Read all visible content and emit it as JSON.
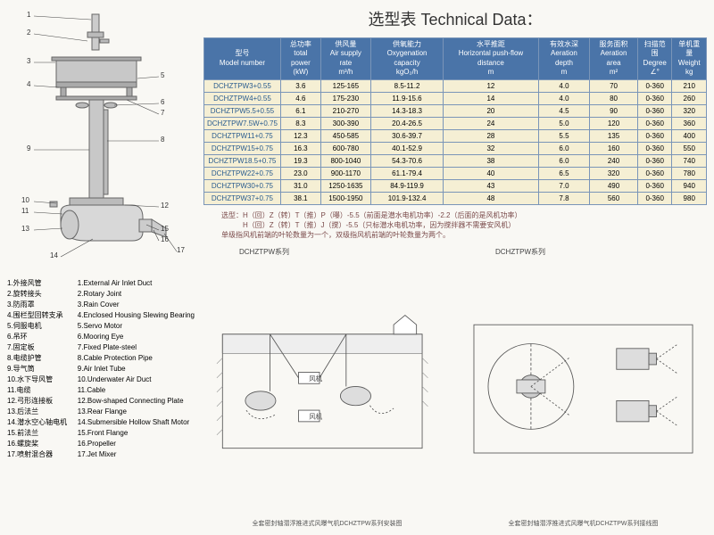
{
  "title_cn": "选型表",
  "title_en": "Technical Data：",
  "headers": [
    {
      "cn": "型号",
      "en": "Model number"
    },
    {
      "cn": "总功率",
      "en": "total power",
      "unit": "(kW)"
    },
    {
      "cn": "供风量",
      "en": "Air supply rate",
      "unit": "m³/h"
    },
    {
      "cn": "供氧能力",
      "en": "Oxygenation capacity",
      "unit": "kgO₂/h"
    },
    {
      "cn": "水平推距",
      "en": "Horizontal push-flow distance",
      "unit": "m"
    },
    {
      "cn": "有效水深",
      "en": "Aeration depth",
      "unit": "m"
    },
    {
      "cn": "服务面积",
      "en": "Aeration area",
      "unit": "m²"
    },
    {
      "cn": "扫描范围",
      "en": "Degree",
      "unit": "∠°"
    },
    {
      "cn": "单机重量",
      "en": "Weight",
      "unit": "kg"
    }
  ],
  "rows": [
    [
      "DCHZTPW3+0.55",
      "3.6",
      "125-165",
      "8.5-11.2",
      "12",
      "4.0",
      "70",
      "0-360",
      "210"
    ],
    [
      "DCHZTPW4+0.55",
      "4.6",
      "175-230",
      "11.9-15.6",
      "14",
      "4.0",
      "80",
      "0-360",
      "260"
    ],
    [
      "DCHZTPW5.5+0.55",
      "6.1",
      "210-270",
      "14.3-18.3",
      "20",
      "4.5",
      "90",
      "0-360",
      "320"
    ],
    [
      "DCHZTPW7.5W+0.75",
      "8.3",
      "300-390",
      "20.4-26.5",
      "24",
      "5.0",
      "120",
      "0-360",
      "360"
    ],
    [
      "DCHZTPW11+0.75",
      "12.3",
      "450-585",
      "30.6-39.7",
      "28",
      "5.5",
      "135",
      "0-360",
      "400"
    ],
    [
      "DCHZTPW15+0.75",
      "16.3",
      "600-780",
      "40.1-52.9",
      "32",
      "6.0",
      "160",
      "0-360",
      "550"
    ],
    [
      "DCHZTPW18.5+0.75",
      "19.3",
      "800-1040",
      "54.3-70.6",
      "38",
      "6.0",
      "240",
      "0-360",
      "740"
    ],
    [
      "DCHZTPW22+0.75",
      "23.0",
      "900-1170",
      "61.1-79.4",
      "40",
      "6.5",
      "320",
      "0-360",
      "780"
    ],
    [
      "DCHZTPW30+0.75",
      "31.0",
      "1250-1635",
      "84.9-119.9",
      "43",
      "7.0",
      "490",
      "0-360",
      "940"
    ],
    [
      "DCHZTPW37+0.75",
      "38.1",
      "1500-1950",
      "101.9-132.4",
      "48",
      "7.8",
      "560",
      "0-360",
      "980"
    ]
  ],
  "notes": [
    "选型：H（回）Z（转）T（推）P（曝）-5.5（前面是潜水电机功率）-2.2（后面的是风机功率）",
    "　　　H（回）Z（转）T（推）J（搅）-5.5（只标潜水电机功率，因为搅拌器不需要安风机）",
    "单级指风机前端的叶轮数量为一个，双级指风机前端的叶轮数量为两个。"
  ],
  "parts": [
    {
      "n": "1",
      "cn": "外接风管",
      "en": "External Air Inlet Duct"
    },
    {
      "n": "2",
      "cn": "旋转接头",
      "en": "Rotary Joint"
    },
    {
      "n": "3",
      "cn": "防雨罩",
      "en": "Rain Cover"
    },
    {
      "n": "4",
      "cn": "围栏型回转支承",
      "en": "Enclosed Housing Slewing Bearing"
    },
    {
      "n": "5",
      "cn": "伺服电机",
      "en": "Servo Motor"
    },
    {
      "n": "6",
      "cn": "吊环",
      "en": "Mooring Eye"
    },
    {
      "n": "7",
      "cn": "固定板",
      "en": "Fixed Plate-steel"
    },
    {
      "n": "8",
      "cn": "电缆护管",
      "en": "Cable Protection Pipe"
    },
    {
      "n": "9",
      "cn": "导气筒",
      "en": "Air Inlet Tube"
    },
    {
      "n": "10",
      "cn": "水下导风管",
      "en": "Underwater Air Duct"
    },
    {
      "n": "11",
      "cn": "电缆",
      "en": "Cable"
    },
    {
      "n": "12",
      "cn": "弓形连接板",
      "en": "Bow-shaped Connecting Plate"
    },
    {
      "n": "13",
      "cn": "后法兰",
      "en": "Rear Flange"
    },
    {
      "n": "14",
      "cn": "潜水空心轴电机",
      "en": "Submersible Hollow Shaft Motor"
    },
    {
      "n": "15",
      "cn": "前法兰",
      "en": "Front Flange"
    },
    {
      "n": "16",
      "cn": "螺旋桨",
      "en": "Propeller"
    },
    {
      "n": "17",
      "cn": "喷射混合器",
      "en": "Jet Mixer"
    }
  ],
  "bd1_label": "DCHZTPW系列",
  "bd2_label": "DCHZTPW系列",
  "bd1_caption": "全套密封轴潜浮推进式风曝气机DCHZTPW系列安装图",
  "bd2_caption": "全套密封轴潜浮推进式风曝气机DCHZTPW系列接线图",
  "callouts": [
    "1",
    "2",
    "3",
    "4",
    "5",
    "6",
    "7",
    "8",
    "9",
    "10",
    "11",
    "12",
    "13",
    "14",
    "15",
    "16",
    "17"
  ],
  "fan_label": "风机",
  "colors": {
    "hdr": "#4a74a8",
    "row": "#f5efd4",
    "border": "#7a95b8",
    "bg": "#f9f8f4",
    "svg_fill": "#d0d0d0",
    "svg_stroke": "#666"
  }
}
